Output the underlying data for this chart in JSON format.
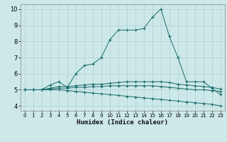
{
  "xlabel": "Humidex (Indice chaleur)",
  "bg_color": "#cde8e8",
  "grid_color": "#b0d0d0",
  "line_color": "#1a6b6b",
  "xlim": [
    -0.5,
    23.5
  ],
  "ylim": [
    3.7,
    10.3
  ],
  "yticks": [
    4,
    5,
    6,
    7,
    8,
    9,
    10
  ],
  "xticks": [
    0,
    1,
    2,
    3,
    4,
    5,
    6,
    7,
    8,
    9,
    10,
    11,
    12,
    13,
    14,
    15,
    16,
    17,
    18,
    19,
    20,
    21,
    22,
    23
  ],
  "series": [
    {
      "x": [
        0,
        1,
        2,
        3,
        4,
        5,
        6,
        7,
        8,
        9,
        10,
        11,
        12,
        13,
        14,
        15,
        16,
        17,
        18,
        19,
        20,
        21,
        22,
        23
      ],
      "y": [
        5.0,
        5.0,
        5.0,
        5.3,
        5.5,
        5.15,
        6.0,
        6.5,
        6.6,
        7.0,
        8.1,
        8.7,
        8.7,
        8.7,
        8.8,
        9.5,
        10.0,
        8.3,
        7.0,
        5.5,
        5.5,
        5.5,
        5.1,
        4.7
      ]
    },
    {
      "x": [
        0,
        1,
        2,
        3,
        4,
        5,
        6,
        7,
        8,
        9,
        10,
        11,
        12,
        13,
        14,
        15,
        16,
        17,
        18,
        19,
        20,
        21,
        22,
        23
      ],
      "y": [
        5.0,
        5.0,
        5.0,
        5.1,
        5.2,
        5.2,
        5.25,
        5.3,
        5.35,
        5.35,
        5.4,
        5.45,
        5.5,
        5.5,
        5.5,
        5.5,
        5.5,
        5.45,
        5.35,
        5.3,
        5.25,
        5.2,
        5.15,
        5.05
      ]
    },
    {
      "x": [
        0,
        1,
        2,
        3,
        4,
        5,
        6,
        7,
        8,
        9,
        10,
        11,
        12,
        13,
        14,
        15,
        16,
        17,
        18,
        19,
        20,
        21,
        22,
        23
      ],
      "y": [
        5.0,
        5.0,
        5.0,
        5.05,
        5.1,
        5.1,
        5.15,
        5.15,
        5.2,
        5.2,
        5.25,
        5.25,
        5.25,
        5.25,
        5.25,
        5.25,
        5.2,
        5.15,
        5.1,
        5.05,
        5.0,
        5.0,
        4.95,
        4.9
      ]
    },
    {
      "x": [
        0,
        1,
        2,
        3,
        4,
        5,
        6,
        7,
        8,
        9,
        10,
        11,
        12,
        13,
        14,
        15,
        16,
        17,
        18,
        19,
        20,
        21,
        22,
        23
      ],
      "y": [
        5.0,
        5.0,
        5.0,
        5.0,
        5.0,
        4.95,
        4.9,
        4.85,
        4.8,
        4.75,
        4.7,
        4.65,
        4.6,
        4.55,
        4.5,
        4.45,
        4.4,
        4.35,
        4.3,
        4.25,
        4.2,
        4.15,
        4.1,
        4.0
      ]
    }
  ]
}
